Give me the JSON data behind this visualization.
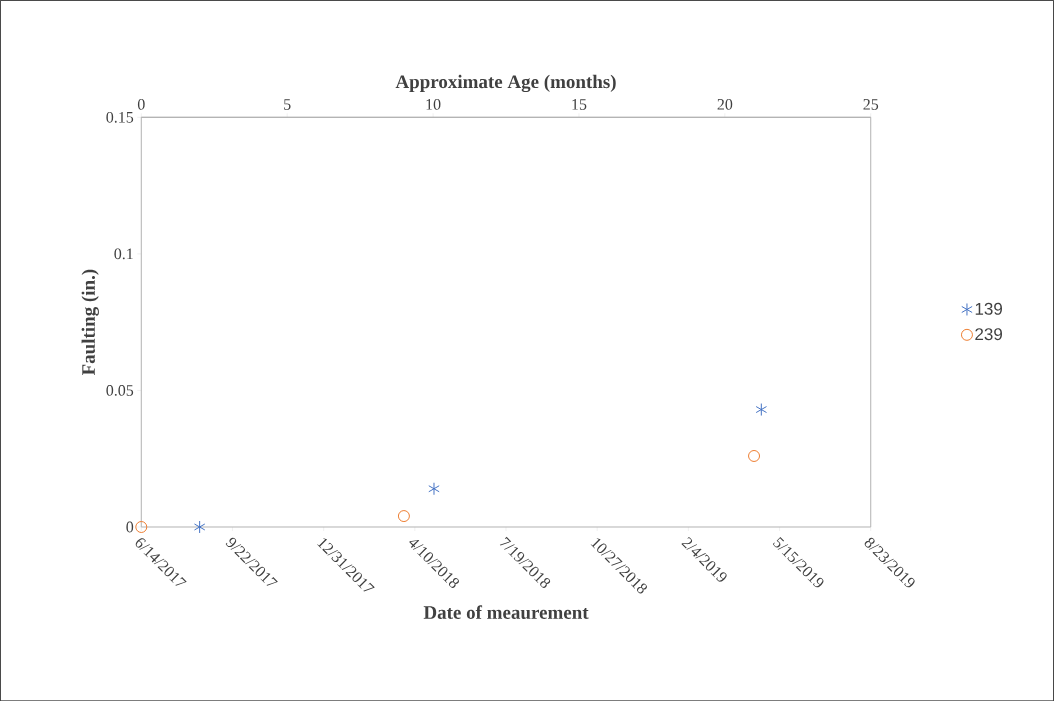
{
  "chart_data": {
    "type": "scatter",
    "xlabel": "Date of meaurement",
    "x2label": "Approximate Age (months)",
    "ylabel": "Faulting (in.)",
    "xlim": [
      "2017-06-14",
      "2019-08-23"
    ],
    "xticks": [
      {
        "value": "2017-06-14",
        "label": "6/14/2017"
      },
      {
        "value": "2017-09-22",
        "label": "9/22/2017"
      },
      {
        "value": "2017-12-31",
        "label": "12/31/2017"
      },
      {
        "value": "2018-04-10",
        "label": "4/10/2018"
      },
      {
        "value": "2018-07-19",
        "label": "7/19/2018"
      },
      {
        "value": "2018-10-27",
        "label": "10/27/2018"
      },
      {
        "value": "2019-02-04",
        "label": "2/4/2019"
      },
      {
        "value": "2019-05-15",
        "label": "5/15/2019"
      },
      {
        "value": "2019-08-23",
        "label": "8/23/2019"
      }
    ],
    "x2lim": [
      0,
      25
    ],
    "x2ticks": [
      0,
      5,
      10,
      15,
      20,
      25
    ],
    "ylim": [
      0,
      0.15
    ],
    "yticks": [
      0,
      0.05,
      0.1,
      0.15
    ],
    "legend": "right",
    "series": [
      {
        "name": "139",
        "color": "#4472c4",
        "marker": "cross",
        "x": [
          "2017-08-17",
          "2018-05-01",
          "2019-04-25"
        ],
        "values": [
          0,
          0.014,
          0.043
        ]
      },
      {
        "name": "239",
        "color": "#ed7d31",
        "marker": "circle",
        "axis": "x2",
        "x": [
          0,
          9,
          21
        ],
        "values": [
          0,
          0.004,
          0.026
        ]
      }
    ]
  }
}
